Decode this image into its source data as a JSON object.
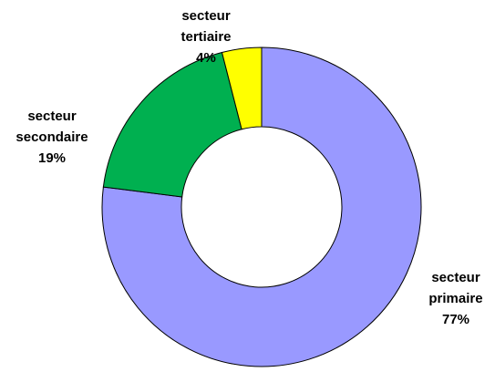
{
  "chart_data": {
    "type": "donut",
    "categories": [
      "secteur primaire",
      "secteur secondaire",
      "secteur tertiaire"
    ],
    "values": [
      77,
      19,
      4
    ],
    "value_labels": [
      "77%",
      "19%",
      "4%"
    ],
    "colors": [
      "#9999ff",
      "#00b050",
      "#ffff00"
    ]
  }
}
